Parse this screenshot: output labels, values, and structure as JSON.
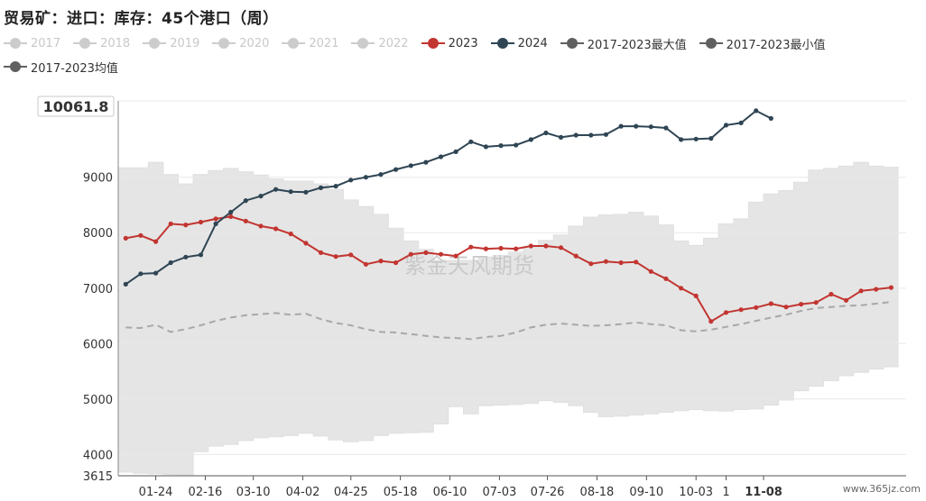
{
  "title": "贸易矿：进口：库存：45个港口（周）",
  "legend": [
    {
      "label": "2017",
      "color": "#cccccc",
      "active": false
    },
    {
      "label": "2018",
      "color": "#cccccc",
      "active": false
    },
    {
      "label": "2019",
      "color": "#cccccc",
      "active": false
    },
    {
      "label": "2020",
      "color": "#cccccc",
      "active": false
    },
    {
      "label": "2021",
      "color": "#cccccc",
      "active": false
    },
    {
      "label": "2022",
      "color": "#cccccc",
      "active": false
    },
    {
      "label": "2023",
      "color": "#c23531",
      "active": true
    },
    {
      "label": "2024",
      "color": "#2f4554",
      "active": true
    },
    {
      "label": "2017-2023最大值",
      "color": "#606060",
      "active": true
    },
    {
      "label": "2017-2023最小值",
      "color": "#606060",
      "active": true
    },
    {
      "label": "2017-2023均值",
      "color": "#606060",
      "active": true
    }
  ],
  "watermark": "紫金天风期货",
  "site_mark": "www.365jz.com",
  "chart_data": {
    "type": "line",
    "ylim": [
      3615,
      10377
    ],
    "y_ticks": [
      4000,
      5000,
      6000,
      7000,
      8000,
      9000
    ],
    "y_min_label": "3615",
    "y_max_label": "10061.8",
    "x_tick_labels": [
      "01-24",
      "02-16",
      "03-10",
      "04-02",
      "04-25",
      "05-18",
      "06-10",
      "07-03",
      "07-26",
      "08-18",
      "09-10",
      "10-03",
      "1",
      "11-08"
    ],
    "x_tick_weeks": [
      2,
      5.3,
      8.5,
      11.8,
      15,
      18.3,
      21.6,
      24.9,
      28.1,
      31.4,
      34.7,
      38,
      40,
      42.5
    ],
    "x_range": [
      -0.5,
      52
    ],
    "highlight_tick": "11-08",
    "series": [
      {
        "name": "2023",
        "color": "#c23531",
        "x": [
          0,
          1,
          2,
          3,
          4,
          5,
          6,
          7,
          8,
          9,
          10,
          11,
          12,
          13,
          14,
          15,
          16,
          17,
          18,
          19,
          20,
          21,
          22,
          23,
          24,
          25,
          26,
          27,
          28,
          29,
          30,
          31,
          32,
          33,
          34,
          35,
          36,
          37,
          38,
          39,
          40,
          41,
          42,
          43,
          44,
          45,
          46,
          47,
          48,
          49,
          50,
          51
        ],
        "values": [
          7900,
          7950,
          7840,
          8160,
          8140,
          8190,
          8250,
          8290,
          8210,
          8120,
          8070,
          7980,
          7810,
          7640,
          7570,
          7600,
          7430,
          7490,
          7460,
          7610,
          7640,
          7610,
          7580,
          7740,
          7710,
          7720,
          7710,
          7760,
          7760,
          7730,
          7580,
          7440,
          7480,
          7460,
          7470,
          7300,
          7170,
          7000,
          6860,
          6400,
          6560,
          6610,
          6650,
          6720,
          6660,
          6710,
          6740,
          6890,
          6780,
          6950,
          6980,
          7010
        ]
      },
      {
        "name": "2024",
        "color": "#2f4554",
        "x": [
          0,
          1,
          2,
          3,
          4,
          5,
          6,
          7,
          8,
          9,
          10,
          11,
          12,
          13,
          14,
          15,
          16,
          17,
          18,
          19,
          20,
          21,
          22,
          23,
          24,
          25,
          26,
          27,
          28,
          29,
          30,
          31,
          32,
          33,
          34,
          35,
          36,
          37,
          38,
          39,
          40,
          41,
          42,
          43
        ],
        "values": [
          7070,
          7260,
          7270,
          7460,
          7560,
          7600,
          8160,
          8370,
          8580,
          8660,
          8780,
          8740,
          8730,
          8810,
          8840,
          8950,
          9000,
          9050,
          9140,
          9210,
          9270,
          9370,
          9460,
          9640,
          9550,
          9570,
          9580,
          9680,
          9800,
          9720,
          9760,
          9760,
          9770,
          9920,
          9920,
          9910,
          9890,
          9680,
          9690,
          9700,
          9940,
          9980,
          10200,
          10061.8
        ]
      },
      {
        "name": "2017-2023最大值",
        "color": "#e5e5e5",
        "x": [
          0,
          1,
          2,
          3,
          4,
          5,
          6,
          7,
          8,
          9,
          10,
          11,
          12,
          13,
          14,
          15,
          16,
          17,
          18,
          19,
          20,
          21,
          22,
          23,
          24,
          25,
          26,
          27,
          28,
          29,
          30,
          31,
          32,
          33,
          34,
          35,
          36,
          37,
          38,
          39,
          40,
          41,
          42,
          43,
          44,
          45,
          46,
          47,
          48,
          49,
          50,
          51
        ],
        "values": [
          9170,
          9170,
          9270,
          9050,
          8880,
          9050,
          9120,
          9160,
          9100,
          9040,
          8970,
          8930,
          8930,
          8880,
          8780,
          8590,
          8470,
          8330,
          8080,
          7850,
          7700,
          7500,
          7500,
          7500,
          7560,
          7590,
          7650,
          7750,
          7860,
          7960,
          8120,
          8280,
          8320,
          8330,
          8370,
          8300,
          8140,
          7850,
          7770,
          7900,
          8160,
          8250,
          8550,
          8700,
          8760,
          8910,
          9130,
          9160,
          9200,
          9270,
          9200,
          9180
        ]
      },
      {
        "name": "2017-2023最小值",
        "color": "#e5e5e5",
        "x": [
          0,
          1,
          2,
          3,
          4,
          5,
          6,
          7,
          8,
          9,
          10,
          11,
          12,
          13,
          14,
          15,
          16,
          17,
          18,
          19,
          20,
          21,
          22,
          23,
          24,
          25,
          26,
          27,
          28,
          29,
          30,
          31,
          32,
          33,
          34,
          35,
          36,
          37,
          38,
          39,
          40,
          41,
          42,
          43,
          44,
          45,
          46,
          47,
          48,
          49,
          50,
          51
        ],
        "values": [
          3680,
          3660,
          3650,
          3640,
          3635,
          4050,
          4150,
          4180,
          4250,
          4300,
          4320,
          4340,
          4380,
          4330,
          4260,
          4230,
          4250,
          4340,
          4380,
          4390,
          4400,
          4550,
          4860,
          4730,
          4880,
          4890,
          4900,
          4920,
          4970,
          4940,
          4880,
          4760,
          4680,
          4690,
          4710,
          4730,
          4760,
          4790,
          4810,
          4790,
          4780,
          4810,
          4820,
          4890,
          4980,
          5150,
          5230,
          5330,
          5420,
          5480,
          5540,
          5580
        ]
      },
      {
        "name": "2017-2023均值",
        "color": "#a8a8a8",
        "x": [
          0,
          1,
          2,
          3,
          4,
          5,
          6,
          7,
          8,
          9,
          10,
          11,
          12,
          13,
          14,
          15,
          16,
          17,
          18,
          19,
          20,
          21,
          22,
          23,
          24,
          25,
          26,
          27,
          28,
          29,
          30,
          31,
          32,
          33,
          34,
          35,
          36,
          37,
          38,
          39,
          40,
          41,
          42,
          43,
          44,
          45,
          46,
          47,
          48,
          49,
          50,
          51
        ],
        "values": [
          6290,
          6280,
          6340,
          6210,
          6260,
          6330,
          6410,
          6470,
          6510,
          6530,
          6550,
          6520,
          6540,
          6440,
          6370,
          6330,
          6260,
          6210,
          6200,
          6170,
          6140,
          6110,
          6100,
          6080,
          6120,
          6140,
          6200,
          6290,
          6340,
          6360,
          6340,
          6320,
          6330,
          6350,
          6380,
          6350,
          6330,
          6240,
          6220,
          6250,
          6300,
          6350,
          6410,
          6470,
          6520,
          6590,
          6640,
          6660,
          6680,
          6690,
          6720,
          6750
        ]
      }
    ]
  }
}
